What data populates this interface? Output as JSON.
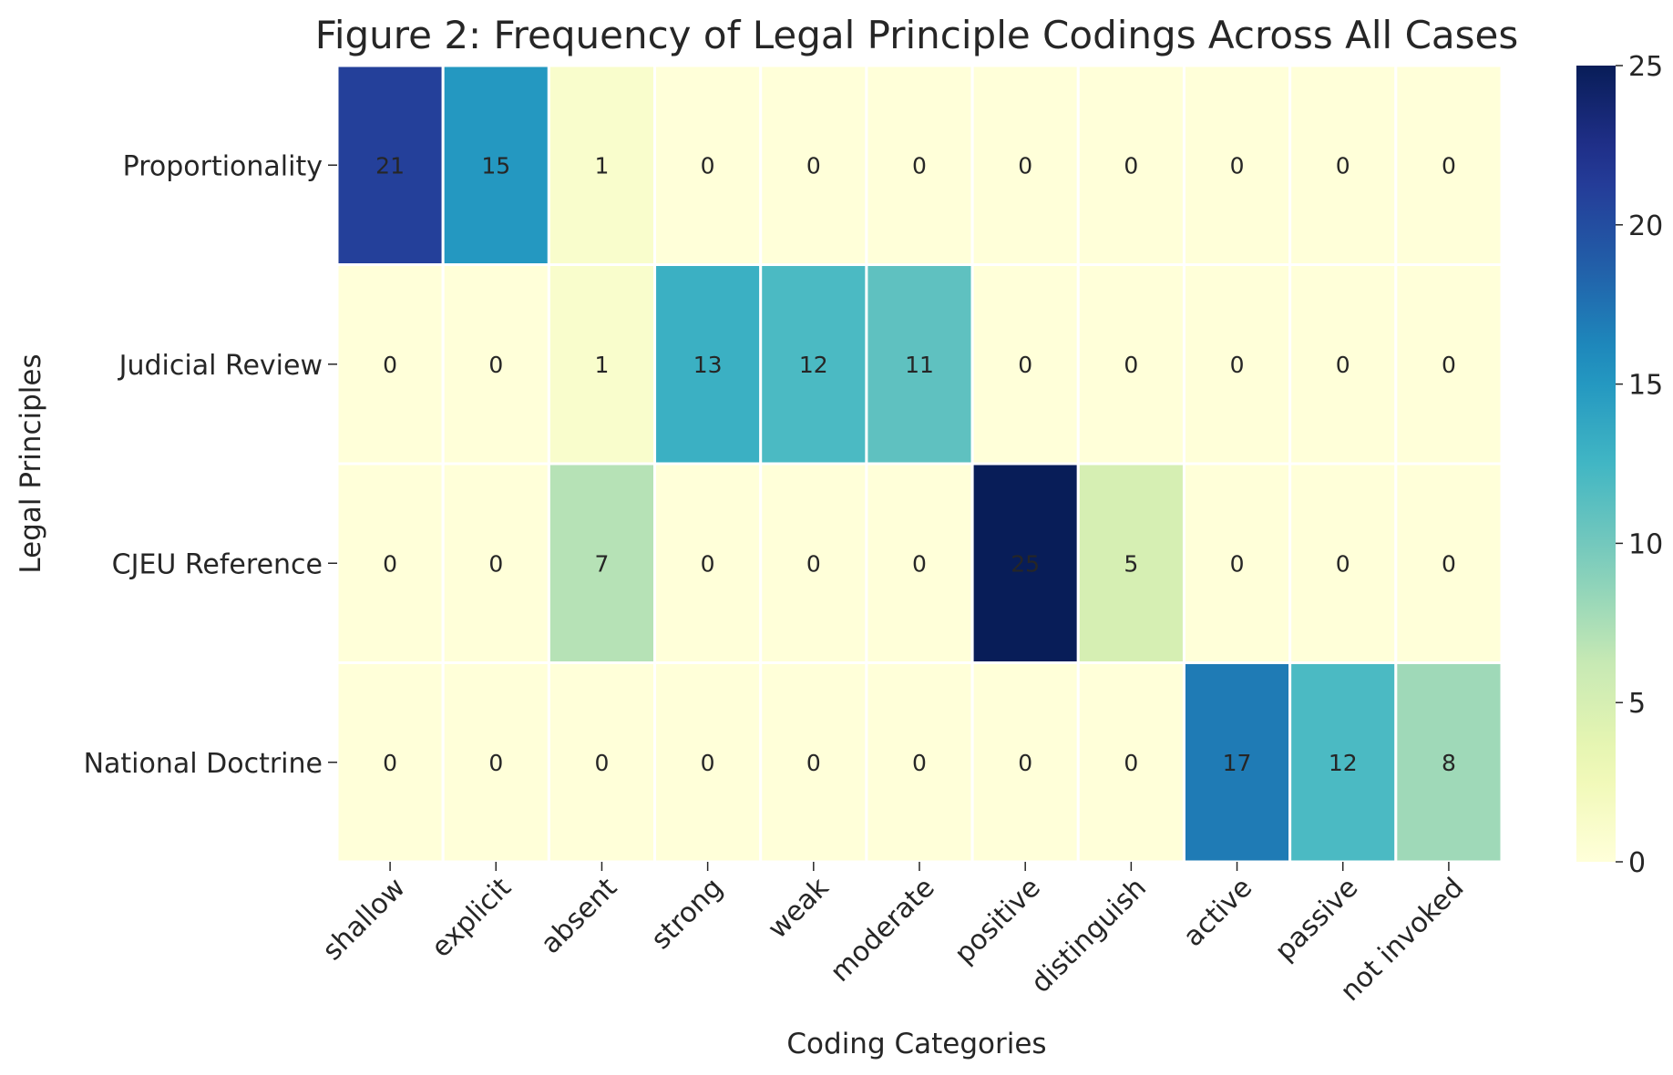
{
  "chart_data": {
    "type": "heatmap",
    "title": "Figure 2: Frequency of Legal Principle Codings Across All Cases",
    "xlabel": "Coding Categories",
    "ylabel": "Legal Principles",
    "columns": [
      "shallow",
      "explicit",
      "absent",
      "strong",
      "weak",
      "moderate",
      "positive",
      "distinguish",
      "active",
      "passive",
      "not invoked"
    ],
    "rows": [
      "Proportionality",
      "Judicial Review",
      "CJEU Reference",
      "National Doctrine"
    ],
    "values": [
      [
        21,
        15,
        1,
        0,
        0,
        0,
        0,
        0,
        0,
        0,
        0
      ],
      [
        0,
        0,
        1,
        13,
        12,
        11,
        0,
        0,
        0,
        0,
        0
      ],
      [
        0,
        0,
        7,
        0,
        0,
        0,
        25,
        5,
        0,
        0,
        0
      ],
      [
        0,
        0,
        0,
        0,
        0,
        0,
        0,
        0,
        17,
        12,
        8
      ]
    ],
    "colorbar": {
      "min": 0,
      "max": 25,
      "ticks": [
        0,
        5,
        10,
        15,
        20,
        25
      ]
    },
    "colormap": "YlGnBu",
    "annotations": true,
    "grid": false,
    "legend": "colorbar-right"
  }
}
